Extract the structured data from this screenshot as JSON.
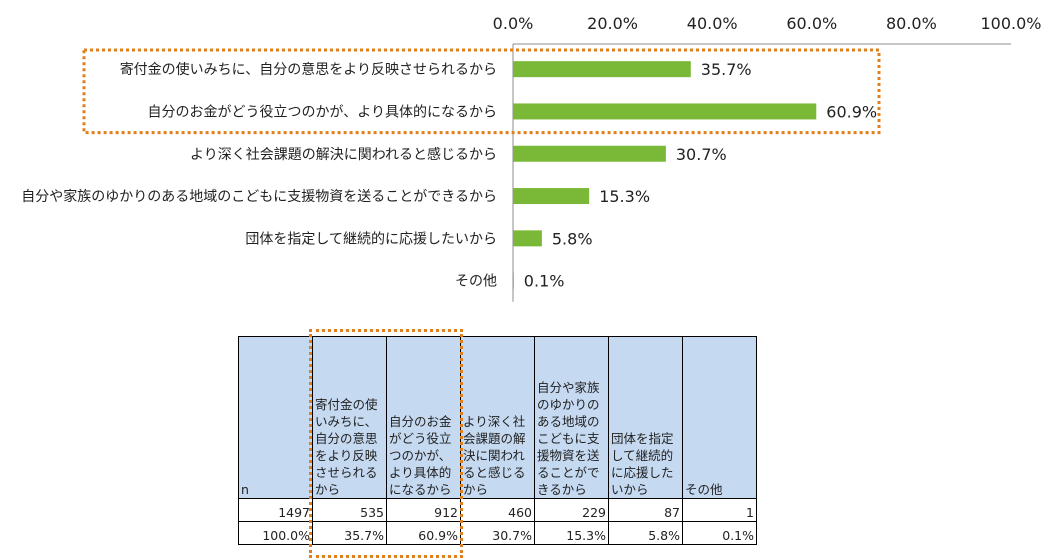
{
  "colors": {
    "bar": "#7ab838",
    "highlight": "#e07f1d",
    "header_bg": "#c5d9f1",
    "axis": "#8c8c8c"
  },
  "chart_data": {
    "type": "bar",
    "orientation": "horizontal",
    "categories": [
      "寄付金の使いみちに、自分の意思をより反映させられるから",
      "自分のお金がどう役立つのかが、より具体的になるから",
      "より深く社会課題の解決に関われると感じるから",
      "自分や家族のゆかりのある地域のこどもに支援物資を送ることができるから",
      "団体を指定して継続的に応援したいから",
      "その他"
    ],
    "values": [
      35.7,
      60.9,
      30.7,
      15.3,
      5.8,
      0.1
    ],
    "value_labels": [
      "35.7%",
      "60.9%",
      "30.7%",
      "15.3%",
      "5.8%",
      "0.1%"
    ],
    "xlim": [
      0,
      100
    ],
    "xticks": [
      0,
      20,
      40,
      60,
      80,
      100
    ],
    "xtick_labels": [
      "0.0%",
      "20.0%",
      "40.0%",
      "60.0%",
      "80.0%",
      "100.0%"
    ],
    "axis_position": "top",
    "grid": false,
    "highlighted_categories": [
      0,
      1
    ]
  },
  "table": {
    "headers": [
      "n",
      "寄付金の使いみちに、自分の意思をより反映させられるから",
      "自分のお金がどう役立つのかが、より具体的になるから",
      "より深く社会課題の解決に関われると感じるから",
      "自分や家族のゆかりのある地域のこどもに支援物資を送ることができるから",
      "団体を指定して継続的に応援したいから",
      "その他"
    ],
    "counts": [
      "1497",
      "535",
      "912",
      "460",
      "229",
      "87",
      "1"
    ],
    "percents": [
      "100.0%",
      "35.7%",
      "60.9%",
      "30.7%",
      "15.3%",
      "5.8%",
      "0.1%"
    ],
    "highlighted_columns": [
      1,
      2
    ]
  }
}
